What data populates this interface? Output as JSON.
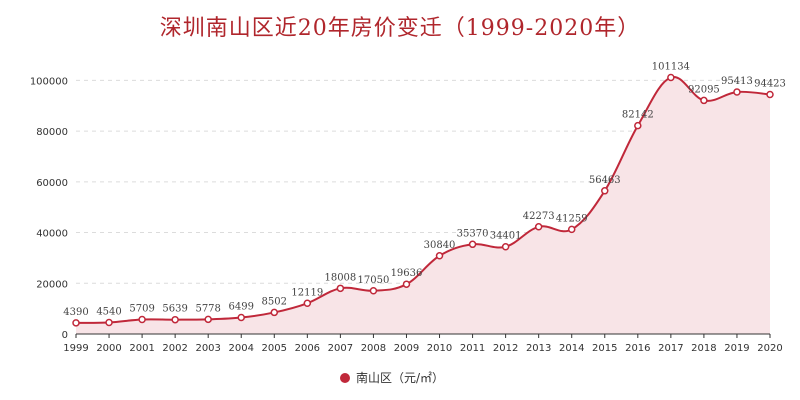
{
  "chart_data": {
    "type": "line",
    "title": "深圳南山区近20年房价变迁（1999-2020年）",
    "categories": [
      "1999",
      "2000",
      "2001",
      "2002",
      "2003",
      "2004",
      "2005",
      "2006",
      "2007",
      "2008",
      "2009",
      "2010",
      "2011",
      "2012",
      "2013",
      "2014",
      "2015",
      "2016",
      "2017",
      "2018",
      "2019",
      "2020"
    ],
    "series": [
      {
        "name": "南山区（元/㎡）",
        "values": [
          4390,
          4540,
          5709,
          5639,
          5778,
          6499,
          8502,
          12119,
          18008,
          17050,
          19636,
          30840,
          35370,
          34401,
          42273,
          41259,
          56463,
          82142,
          101134,
          92095,
          95413,
          94423
        ]
      }
    ],
    "ylim": [
      0,
      110000
    ],
    "yticks": [
      0,
      20000,
      40000,
      60000,
      80000,
      100000
    ],
    "grid": "horizontal-dashed",
    "legend": "bottom-center",
    "colors": {
      "line": "#c0283a",
      "area": "#f8e4e7",
      "title": "#b0262c"
    }
  }
}
